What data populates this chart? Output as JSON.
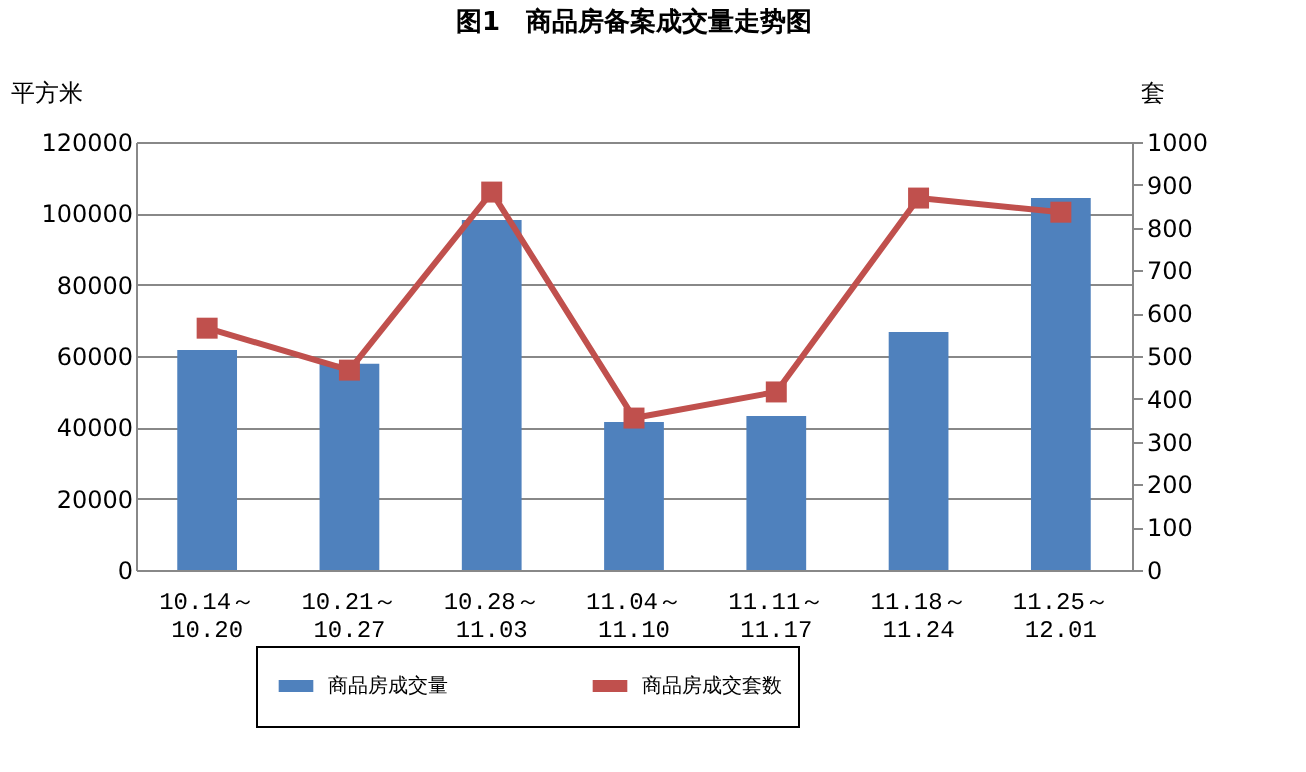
{
  "chart_data": {
    "type": "bar",
    "title": "图1　商品房备案成交量走势图",
    "ylabel": "平方米",
    "y2label": "套",
    "categories": [
      "10.14～\n10.20",
      "10.21～\n10.27",
      "10.28～\n11.03",
      "11.04～\n11.10",
      "11.11～\n11.17",
      "11.18～\n11.24",
      "11.25～\n12.01"
    ],
    "series": [
      {
        "name": "商品房成交量",
        "color": "#4f81bd",
        "values": [
          61700,
          57800,
          98100,
          41500,
          43200,
          66700,
          104300
        ]
      },
      {
        "name": "商品房成交套数",
        "type": "line",
        "axis": "y2",
        "color": "#c0504d",
        "values": [
          565,
          467,
          883,
          355,
          416,
          869,
          836
        ]
      }
    ],
    "ylim": [
      0,
      120000
    ],
    "yticks": [
      0,
      20000,
      40000,
      60000,
      80000,
      100000,
      120000
    ],
    "y2lim": [
      0,
      1000
    ],
    "y2ticks": [
      0,
      100,
      200,
      300,
      400,
      500,
      600,
      700,
      800,
      900,
      1000
    ],
    "grid": "y",
    "legend": "bottom",
    "marker": "square",
    "line_style": "solid"
  }
}
